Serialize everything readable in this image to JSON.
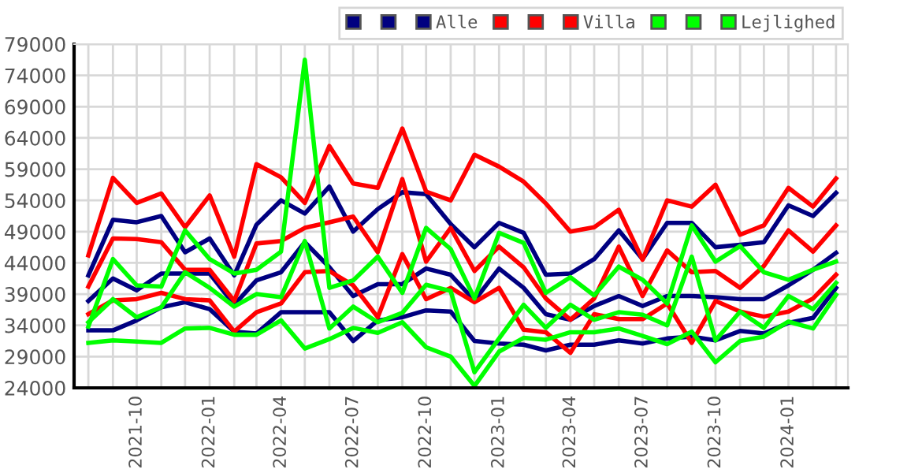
{
  "chart_data": {
    "type": "line",
    "x": [
      "2021-08",
      "2021-09",
      "2021-10",
      "2021-11",
      "2021-12",
      "2022-01",
      "2022-02",
      "2022-03",
      "2022-04",
      "2022-05",
      "2022-06",
      "2022-07",
      "2022-08",
      "2022-09",
      "2022-10",
      "2022-11",
      "2022-12",
      "2023-01",
      "2023-02",
      "2023-03",
      "2023-04",
      "2023-05",
      "2023-06",
      "2023-07",
      "2023-08",
      "2023-09",
      "2023-10",
      "2023-11",
      "2023-12",
      "2024-01",
      "2024-02",
      "2024-03"
    ],
    "xlim": [
      "2021-07-14",
      "2024-03-16"
    ],
    "xticks": [
      {
        "value": "2021-08",
        "label": null
      },
      {
        "value": "2021-09",
        "label": null
      },
      {
        "value": "2021-10",
        "label": "2021-10"
      },
      {
        "value": "2021-11",
        "label": null
      },
      {
        "value": "2021-12",
        "label": null
      },
      {
        "value": "2022-01",
        "label": "2022-01"
      },
      {
        "value": "2022-02",
        "label": null
      },
      {
        "value": "2022-03",
        "label": null
      },
      {
        "value": "2022-04",
        "label": "2022-04"
      },
      {
        "value": "2022-05",
        "label": null
      },
      {
        "value": "2022-06",
        "label": null
      },
      {
        "value": "2022-07",
        "label": "2022-07"
      },
      {
        "value": "2022-08",
        "label": null
      },
      {
        "value": "2022-09",
        "label": null
      },
      {
        "value": "2022-10",
        "label": "2022-10"
      },
      {
        "value": "2022-11",
        "label": null
      },
      {
        "value": "2022-12",
        "label": null
      },
      {
        "value": "2023-01",
        "label": "2023-01"
      },
      {
        "value": "2023-02",
        "label": null
      },
      {
        "value": "2023-03",
        "label": null
      },
      {
        "value": "2023-04",
        "label": "2023-04"
      },
      {
        "value": "2023-05",
        "label": null
      },
      {
        "value": "2023-06",
        "label": null
      },
      {
        "value": "2023-07",
        "label": "2023-07"
      },
      {
        "value": "2023-08",
        "label": null
      },
      {
        "value": "2023-09",
        "label": null
      },
      {
        "value": "2023-10",
        "label": "2023-10"
      },
      {
        "value": "2023-11",
        "label": null
      },
      {
        "value": "2023-12",
        "label": null
      },
      {
        "value": "2024-01",
        "label": "2024-01"
      },
      {
        "value": "2024-02",
        "label": null
      },
      {
        "value": "2024-03",
        "label": null
      }
    ],
    "ylim": [
      24000,
      79000
    ],
    "yticks": [
      24000,
      29000,
      34000,
      39000,
      44000,
      49000,
      54000,
      59000,
      64000,
      69000,
      74000,
      79000
    ],
    "grid": true,
    "legend": "top right",
    "marker": "none",
    "line_style": "solid",
    "series": [
      {
        "color": "#000080",
        "values": [
          33200,
          33200,
          34800,
          36900,
          37700,
          36600,
          33000,
          32700,
          36100,
          36100,
          36100,
          31500,
          34800,
          35300,
          36400,
          36200,
          31500,
          31100,
          30900,
          30000,
          30900,
          30900,
          31600,
          31100,
          31900,
          32200,
          31600,
          33100,
          32700,
          34400,
          35200,
          40000
        ]
      },
      {
        "color": "#000080",
        "values": [
          37900,
          41500,
          39600,
          42300,
          42300,
          42300,
          37300,
          41200,
          42500,
          47300,
          43300,
          38700,
          40600,
          40600,
          43100,
          42100,
          38000,
          43100,
          40000,
          35800,
          34900,
          37100,
          38700,
          37100,
          38700,
          38700,
          38500,
          38200,
          38200,
          40400,
          42900,
          45600
        ]
      },
      {
        "name": "Alle",
        "color": "#000080",
        "values": [
          42000,
          50900,
          50500,
          51500,
          45700,
          47900,
          42000,
          50100,
          54000,
          51900,
          56200,
          49000,
          52600,
          55300,
          55000,
          50200,
          46500,
          50400,
          48800,
          42100,
          42300,
          44600,
          49200,
          44600,
          50400,
          50400,
          46500,
          46900,
          47300,
          53200,
          51500,
          55200
        ]
      },
      {
        "color": "#ff0000",
        "values": [
          35800,
          38000,
          38200,
          39200,
          38200,
          38000,
          33000,
          36100,
          37500,
          42500,
          42700,
          40400,
          35300,
          45400,
          38200,
          40000,
          37700,
          40000,
          33300,
          32900,
          29600,
          35800,
          35000,
          35000,
          37500,
          31200,
          37900,
          36200,
          35400,
          36200,
          38300,
          42100
        ]
      },
      {
        "color": "#ff0000",
        "values": [
          40200,
          47900,
          47800,
          47300,
          42900,
          42900,
          37900,
          47100,
          47500,
          49600,
          50500,
          51400,
          45700,
          57400,
          44200,
          49600,
          42700,
          46600,
          43300,
          38300,
          34900,
          38300,
          46600,
          38700,
          46000,
          42500,
          42700,
          40000,
          43500,
          49200,
          45800,
          50000
        ]
      },
      {
        "name": "Villa",
        "color": "#ff0000",
        "values": [
          45200,
          57600,
          53600,
          55100,
          49700,
          54800,
          45000,
          59800,
          57700,
          53600,
          62700,
          56700,
          56000,
          65500,
          55400,
          54000,
          61300,
          59400,
          57000,
          53500,
          49000,
          49700,
          52500,
          44500,
          54000,
          53000,
          56500,
          48500,
          50000,
          56000,
          53000,
          57500
        ]
      },
      {
        "color": "#00ff00",
        "values": [
          31200,
          31600,
          31400,
          31200,
          33500,
          33600,
          32500,
          32500,
          34800,
          30300,
          31800,
          33600,
          32800,
          34500,
          30500,
          29000,
          24300,
          29800,
          32000,
          31700,
          32900,
          32900,
          33500,
          32300,
          31000,
          33000,
          28100,
          31500,
          32200,
          34600,
          33500,
          38900
        ]
      },
      {
        "color": "#00ff00",
        "values": [
          34500,
          38200,
          35300,
          36900,
          42500,
          40000,
          37000,
          39000,
          38500,
          47500,
          33500,
          37000,
          34500,
          36000,
          40500,
          39500,
          26500,
          31900,
          37300,
          33600,
          37300,
          34900,
          36100,
          35700,
          34000,
          45000,
          31600,
          36200,
          33600,
          38700,
          36600,
          40800
        ]
      },
      {
        "name": "Lejlighed",
        "color": "#00ff00",
        "values": [
          33800,
          44600,
          40400,
          40200,
          49200,
          44600,
          42300,
          42900,
          45800,
          76500,
          40000,
          41200,
          45000,
          39200,
          49600,
          46200,
          38300,
          48800,
          47200,
          39200,
          41700,
          38800,
          43400,
          41300,
          37500,
          50000,
          44200,
          46700,
          42500,
          41300,
          42900,
          44200
        ]
      }
    ]
  }
}
